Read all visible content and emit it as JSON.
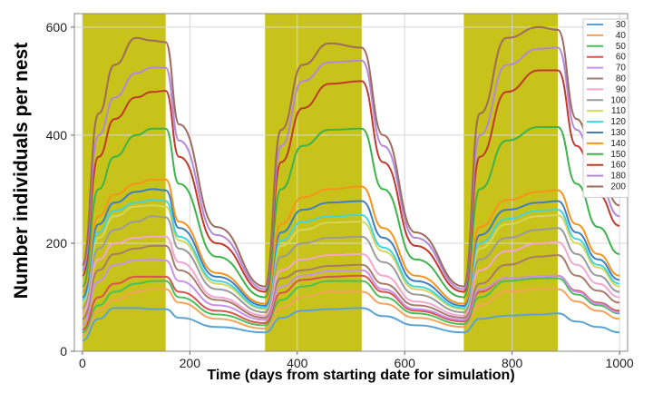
{
  "chart_data": {
    "type": "line",
    "title": "",
    "xlabel": "Time (days from starting date for simulation)",
    "ylabel": "Number individuals per nest",
    "xlim": [
      -15,
      1015
    ],
    "ylim": [
      0,
      625
    ],
    "xticks": [
      0,
      200,
      400,
      600,
      800,
      1000
    ],
    "yticks": [
      0,
      200,
      400,
      600
    ],
    "grid": true,
    "legend_position": "top-right",
    "shaded_periods": [
      [
        0,
        155
      ],
      [
        340,
        520
      ],
      [
        710,
        885
      ]
    ],
    "shade_color": "#c7c31a",
    "x": [
      0,
      30,
      60,
      100,
      130,
      155,
      180,
      250,
      340,
      370,
      410,
      460,
      520,
      560,
      620,
      710,
      740,
      790,
      850,
      885,
      920,
      960,
      1000
    ],
    "series": [
      {
        "name": "30",
        "color": "#5ba3d6",
        "values": [
          20,
          60,
          80,
          80,
          78,
          78,
          62,
          45,
          35,
          62,
          75,
          78,
          80,
          65,
          48,
          35,
          60,
          66,
          68,
          70,
          55,
          45,
          35
        ]
      },
      {
        "name": "40",
        "color": "#f5a35b",
        "values": [
          30,
          75,
          95,
          110,
          115,
          115,
          90,
          60,
          42,
          80,
          100,
          110,
          110,
          88,
          62,
          45,
          85,
          110,
          115,
          115,
          92,
          75,
          60
        ]
      },
      {
        "name": "50",
        "color": "#4cbf5a",
        "values": [
          35,
          85,
          110,
          125,
          130,
          130,
          100,
          68,
          48,
          95,
          120,
          130,
          130,
          100,
          70,
          50,
          100,
          130,
          135,
          135,
          105,
          85,
          70
        ]
      },
      {
        "name": "60",
        "color": "#d9534f",
        "values": [
          40,
          100,
          125,
          138,
          138,
          138,
          110,
          75,
          52,
          108,
          132,
          138,
          140,
          110,
          75,
          55,
          110,
          135,
          138,
          140,
          112,
          90,
          75
        ]
      },
      {
        "name": "70",
        "color": "#c792ea",
        "values": [
          50,
          130,
          160,
          168,
          170,
          168,
          130,
          85,
          58,
          120,
          140,
          148,
          150,
          115,
          78,
          58,
          115,
          135,
          138,
          140,
          110,
          88,
          72
        ]
      },
      {
        "name": "80",
        "color": "#a97b6a",
        "values": [
          60,
          150,
          180,
          190,
          195,
          195,
          150,
          95,
          62,
          135,
          150,
          158,
          160,
          125,
          85,
          62,
          125,
          160,
          175,
          178,
          140,
          112,
          90
        ]
      },
      {
        "name": "90",
        "color": "#f3a6d0",
        "values": [
          70,
          170,
          200,
          210,
          212,
          212,
          165,
          100,
          66,
          150,
          170,
          178,
          180,
          140,
          92,
          66,
          150,
          185,
          200,
          202,
          160,
          125,
          100
        ]
      },
      {
        "name": "100",
        "color": "#9a9a9a",
        "values": [
          80,
          190,
          225,
          240,
          250,
          248,
          190,
          115,
          72,
          175,
          200,
          210,
          212,
          165,
          105,
          72,
          170,
          210,
          225,
          228,
          180,
          140,
          110
        ]
      },
      {
        "name": "110",
        "color": "#d6d65a",
        "values": [
          90,
          210,
          250,
          268,
          270,
          268,
          205,
          125,
          78,
          195,
          225,
          238,
          240,
          185,
          115,
          78,
          190,
          235,
          250,
          252,
          200,
          155,
          120
        ]
      },
      {
        "name": "120",
        "color": "#42d4e0",
        "values": [
          95,
          220,
          260,
          275,
          280,
          278,
          212,
          130,
          80,
          205,
          240,
          250,
          252,
          192,
          120,
          80,
          200,
          245,
          260,
          262,
          208,
          160,
          125
        ]
      },
      {
        "name": "130",
        "color": "#3f7fbf",
        "values": [
          100,
          235,
          275,
          295,
          300,
          298,
          228,
          138,
          84,
          220,
          262,
          275,
          278,
          210,
          130,
          84,
          215,
          262,
          275,
          278,
          220,
          170,
          132
        ]
      },
      {
        "name": "140",
        "color": "#f7941d",
        "values": [
          110,
          250,
          290,
          310,
          318,
          318,
          240,
          145,
          88,
          235,
          285,
          300,
          305,
          228,
          140,
          88,
          230,
          280,
          295,
          298,
          235,
          180,
          140
        ]
      },
      {
        "name": "150",
        "color": "#3cb44b",
        "values": [
          120,
          300,
          360,
          400,
          412,
          412,
          310,
          175,
          100,
          300,
          380,
          410,
          412,
          300,
          170,
          100,
          300,
          390,
          415,
          415,
          310,
          230,
          180
        ]
      },
      {
        "name": "160",
        "color": "#c0392b",
        "values": [
          140,
          360,
          430,
          470,
          480,
          482,
          360,
          200,
          110,
          350,
          450,
          495,
          500,
          350,
          195,
          110,
          360,
          480,
          520,
          520,
          380,
          290,
          232
        ]
      },
      {
        "name": "180",
        "color": "#b388d9",
        "values": [
          150,
          400,
          470,
          515,
          525,
          525,
          390,
          215,
          115,
          380,
          500,
          535,
          538,
          380,
          210,
          115,
          400,
          530,
          560,
          562,
          410,
          310,
          250
        ]
      },
      {
        "name": "200",
        "color": "#9e6b5e",
        "values": [
          160,
          440,
          530,
          580,
          575,
          572,
          420,
          230,
          120,
          410,
          530,
          570,
          562,
          400,
          220,
          120,
          440,
          580,
          600,
          595,
          430,
          330,
          270
        ]
      }
    ]
  }
}
